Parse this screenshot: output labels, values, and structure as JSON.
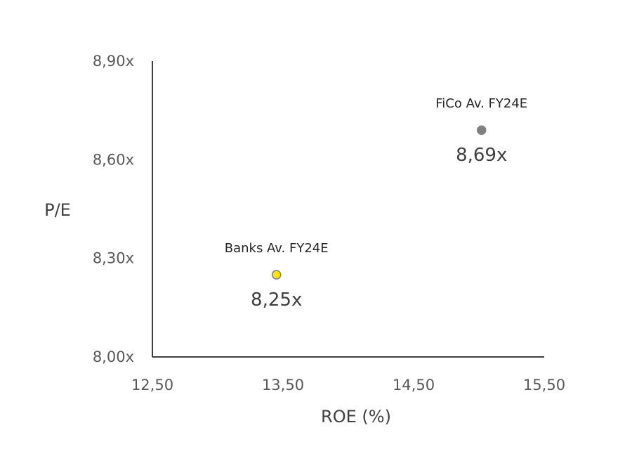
{
  "chart_data": {
    "type": "scatter",
    "xlabel": "ROE (%)",
    "ylabel": "P/E",
    "xlim": [
      12.5,
      15.5
    ],
    "ylim": [
      8.0,
      8.9
    ],
    "x_ticks": [
      "12,50",
      "13,50",
      "14,50",
      "15,50"
    ],
    "y_ticks": [
      "8,00x",
      "8,30x",
      "8,60x",
      "8,90x"
    ],
    "grid": false,
    "series": [
      {
        "name": "Banks Av. FY24E",
        "x": 13.45,
        "y": 8.25,
        "value_label": "8,25x",
        "color": "#ffe600",
        "stroke": "#7f7f7f"
      },
      {
        "name": "FiCo Av. FY24E",
        "x": 15.02,
        "y": 8.69,
        "value_label": "8,69x",
        "color": "#808080",
        "stroke": "#808080"
      }
    ]
  }
}
